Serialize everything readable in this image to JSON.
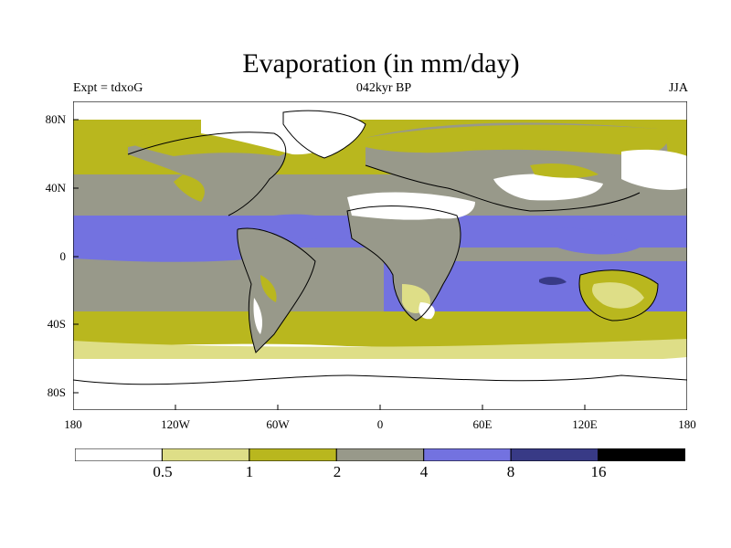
{
  "header": {
    "title": "Evaporation (in mm/day)",
    "left": "Expt = tdxoG",
    "center": "042kyr BP",
    "right": "JJA"
  },
  "axes": {
    "y_ticks": [
      "80N",
      "40N",
      "0",
      "40S",
      "80S"
    ],
    "x_ticks": [
      "180",
      "120W",
      "60W",
      "0",
      "60E",
      "120E",
      "180"
    ]
  },
  "colorbar": {
    "boundaries": [
      "0.5",
      "1",
      "2",
      "4",
      "8",
      "16"
    ],
    "colors": [
      "#ffffff",
      "#dede87",
      "#b9b71e",
      "#98998a",
      "#7372e0",
      "#383a86",
      "#000000"
    ]
  }
}
